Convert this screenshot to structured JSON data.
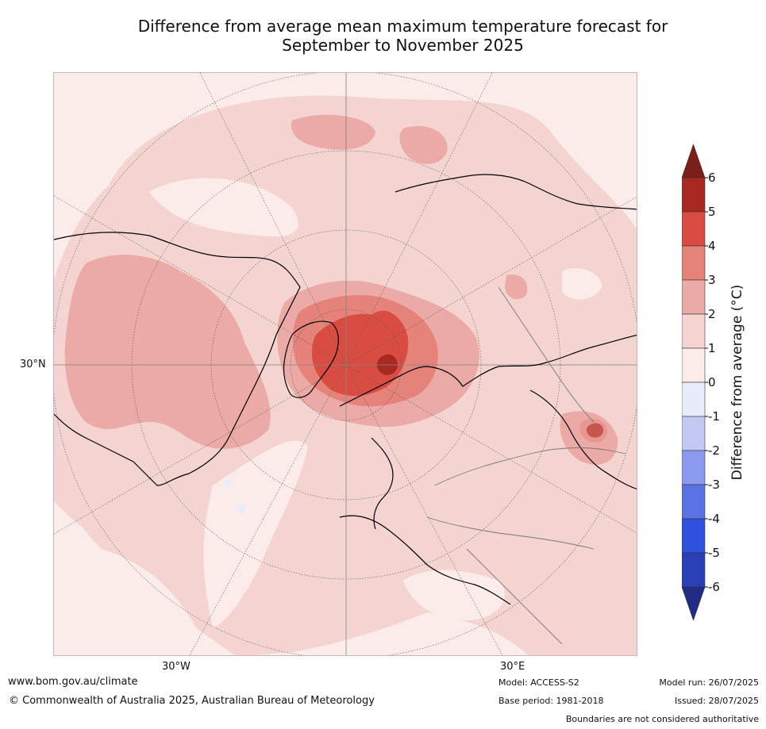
{
  "title": {
    "line1": "Difference from average mean maximum temperature forecast for",
    "line2": "September to November 2025"
  },
  "map": {
    "lat_label": "30°N",
    "lon_labels": [
      "30°W",
      "30°E"
    ]
  },
  "colorbar": {
    "label": "Difference from average (°C)",
    "ticks": [
      "6",
      "5",
      "4",
      "3",
      "2",
      "1",
      "0",
      "-1",
      "-2",
      "-3",
      "-4",
      "-5",
      "-6"
    ],
    "colors": {
      "above6": "#7a1f1a",
      "5to6": "#a82922",
      "4to5": "#d94c41",
      "3to4": "#e5837b",
      "2to3": "#ebaaa5",
      "1to2": "#f4d4d1",
      "0to1": "#fbebe9",
      "m1to0": "#e8ecfa",
      "m2tom1": "#c2c9f2",
      "m3tom2": "#8b9aec",
      "m4tom3": "#5a72e4",
      "m5tom4": "#2f51e0",
      "m6tom5": "#2a3fb6",
      "below_m6": "#1f2b85"
    }
  },
  "footer": {
    "url": "www.bom.gov.au/climate",
    "copyright": "© Commonwealth of Australia 2025, Australian Bureau of Meteorology",
    "model": "Model: ACCESS-S2",
    "base_period": "Base period: 1981-2018",
    "model_run": "Model run: 26/07/2025",
    "issued": "Issued: 28/07/2025",
    "disclaimer": "Boundaries are not considered authoritative"
  }
}
